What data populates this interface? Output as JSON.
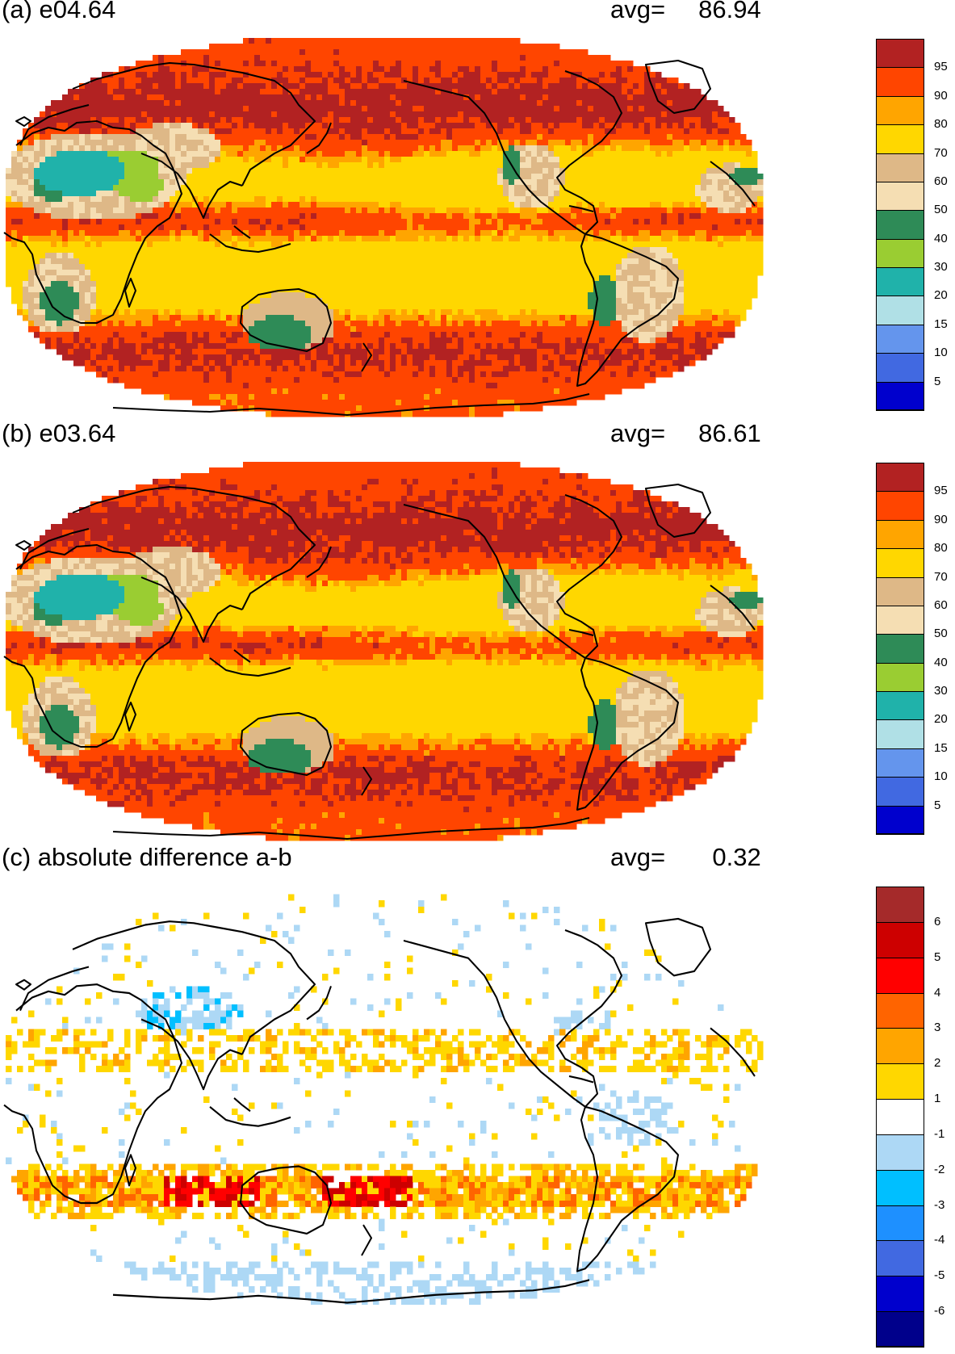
{
  "panels": [
    {
      "id": "a",
      "title": "(a) e04.64",
      "avg_label": "avg=",
      "avg_value": "86.94",
      "variant": "abs"
    },
    {
      "id": "b",
      "title": "(b) e03.64",
      "avg_label": "avg=",
      "avg_value": "86.61",
      "variant": "abs2"
    },
    {
      "id": "c",
      "title": "(c) absolute difference a-b",
      "avg_label": "avg=",
      "avg_value": "0.32",
      "variant": "diff"
    }
  ],
  "colorbar_abs": {
    "labels": [
      "95",
      "90",
      "80",
      "70",
      "60",
      "50",
      "40",
      "30",
      "20",
      "15",
      "10",
      "5"
    ],
    "colors": [
      "#b22222",
      "#ff4500",
      "#ffa500",
      "#ffd700",
      "#deb887",
      "#f5deb3",
      "#2e8b57",
      "#9acd32",
      "#20b2aa",
      "#b0e0e6",
      "#6495ed",
      "#4169e1",
      "#0000cd"
    ]
  },
  "colorbar_diff": {
    "labels": [
      "6",
      "5",
      "4",
      "3",
      "2",
      "1",
      "-1",
      "-2",
      "-3",
      "-4",
      "-5",
      "-6"
    ],
    "colors": [
      "#a52a2a",
      "#cd0000",
      "#ff0000",
      "#ff6400",
      "#ffa500",
      "#ffd700",
      "#ffffff",
      "#add8f5",
      "#00bfff",
      "#1e90ff",
      "#4169e1",
      "#0000cd",
      "#00008b"
    ]
  }
}
